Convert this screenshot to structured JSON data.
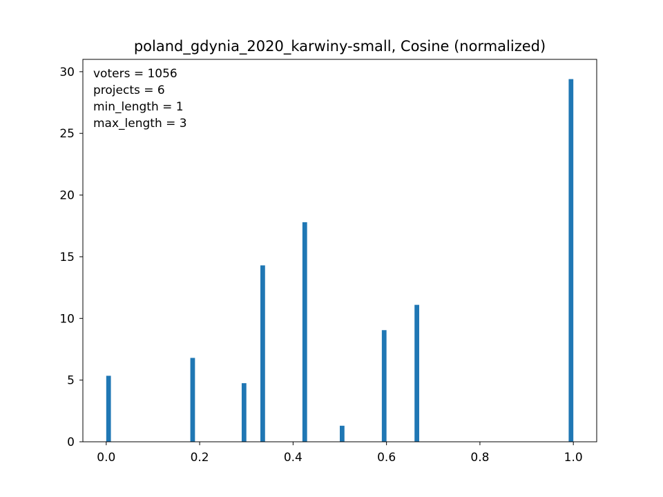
{
  "chart_data": {
    "type": "bar",
    "title": "poland_gdynia_2020_karwiny-small, Cosine (normalized)",
    "xlabel": "",
    "ylabel": "",
    "xlim": [
      -0.05,
      1.05
    ],
    "ylim": [
      0,
      31
    ],
    "xticks": [
      "0.0",
      "0.2",
      "0.4",
      "0.6",
      "0.8",
      "1.0"
    ],
    "xtick_values": [
      0.0,
      0.2,
      0.4,
      0.6,
      0.8,
      1.0
    ],
    "yticks": [
      "0",
      "5",
      "10",
      "15",
      "20",
      "25",
      "30"
    ],
    "ytick_values": [
      0,
      5,
      10,
      15,
      20,
      25,
      30
    ],
    "bar_width": 0.01,
    "bar_color": "#1f77b4",
    "grid": false,
    "legend": "none",
    "annotation": [
      "voters = 1056",
      "projects = 6",
      "min_length = 1",
      "max_length = 3"
    ],
    "series": [
      {
        "x": [
          0.005,
          0.185,
          0.295,
          0.335,
          0.425,
          0.505,
          0.595,
          0.665,
          0.995
        ],
        "values": [
          5.35,
          6.8,
          4.75,
          14.3,
          17.8,
          1.3,
          9.05,
          11.1,
          29.4
        ]
      }
    ]
  }
}
